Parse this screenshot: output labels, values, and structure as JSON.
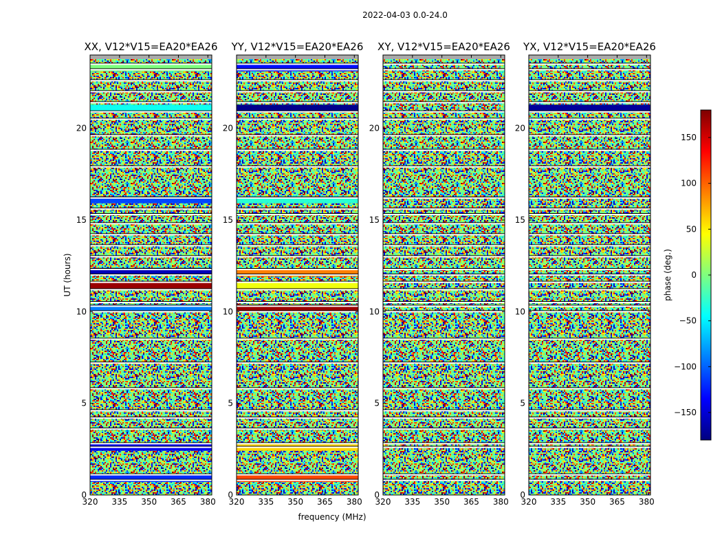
{
  "chart_data": {
    "type": "heatmap",
    "suptitle": "2022-04-03 0.0-24.0",
    "xlabel": "frequency (MHz)",
    "ylabel": "UT (hours)",
    "xlim": [
      320,
      382
    ],
    "ylim": [
      0,
      24
    ],
    "xticks": [
      "320",
      "335",
      "350",
      "365",
      "380"
    ],
    "xtick_values": [
      320,
      335,
      350,
      365,
      380
    ],
    "yticks": [
      "0",
      "5",
      "10",
      "15",
      "20"
    ],
    "ytick_values": [
      0,
      5,
      10,
      15,
      20
    ],
    "colorbar": {
      "label": "phase (deg.)",
      "range": [
        -180,
        180
      ],
      "ticks": [
        "150",
        "100",
        "50",
        "0",
        "−50",
        "−100",
        "−150"
      ],
      "tick_values": [
        150,
        100,
        50,
        0,
        -50,
        -100,
        -150
      ],
      "colormap": "jet",
      "colors": [
        "#00007f",
        "#0000ff",
        "#007fff",
        "#00ffff",
        "#7fff7f",
        "#ffff00",
        "#ff7f00",
        "#ff0000",
        "#7f0000"
      ]
    },
    "panels": [
      {
        "title": "XX, V12*V15=EA20*EA26",
        "bands": [
          {
            "t": 0.9,
            "phase": -120
          },
          {
            "t": 2.6,
            "phase": -140
          },
          {
            "t": 10.2,
            "phase": -90
          },
          {
            "t": 11.4,
            "phase": 170
          },
          {
            "t": 12.2,
            "phase": -160
          },
          {
            "t": 16.1,
            "phase": -110
          },
          {
            "t": 21.1,
            "phase": -40
          },
          {
            "t": 23.3,
            "phase": 0
          }
        ]
      },
      {
        "title": "YY, V12*V15=EA20*EA26",
        "bands": [
          {
            "t": 0.9,
            "phase": 110
          },
          {
            "t": 2.6,
            "phase": 60
          },
          {
            "t": 10.2,
            "phase": 170
          },
          {
            "t": 11.4,
            "phase": 40
          },
          {
            "t": 12.1,
            "phase": 90
          },
          {
            "t": 16.1,
            "phase": -30
          },
          {
            "t": 21.1,
            "phase": -175
          },
          {
            "t": 23.3,
            "phase": -130
          }
        ]
      },
      {
        "title": "XY, V12*V15=EA20*EA26",
        "bands": []
      },
      {
        "title": "YX, V12*V15=EA20*EA26",
        "bands": [
          {
            "t": 21.1,
            "phase": -170
          }
        ]
      }
    ],
    "gap_lines_ut": [
      0.8,
      1.1,
      2.6,
      2.8,
      3.6,
      4.2,
      4.6,
      5.8,
      7.2,
      8.5,
      10.0,
      10.3,
      10.5,
      11.2,
      11.6,
      12.0,
      12.3,
      13.0,
      13.6,
      14.2,
      14.8,
      15.3,
      15.6,
      16.2,
      17.9,
      18.8,
      19.6,
      20.5,
      20.9,
      21.4,
      22.0,
      22.6,
      23.2,
      23.5
    ]
  }
}
